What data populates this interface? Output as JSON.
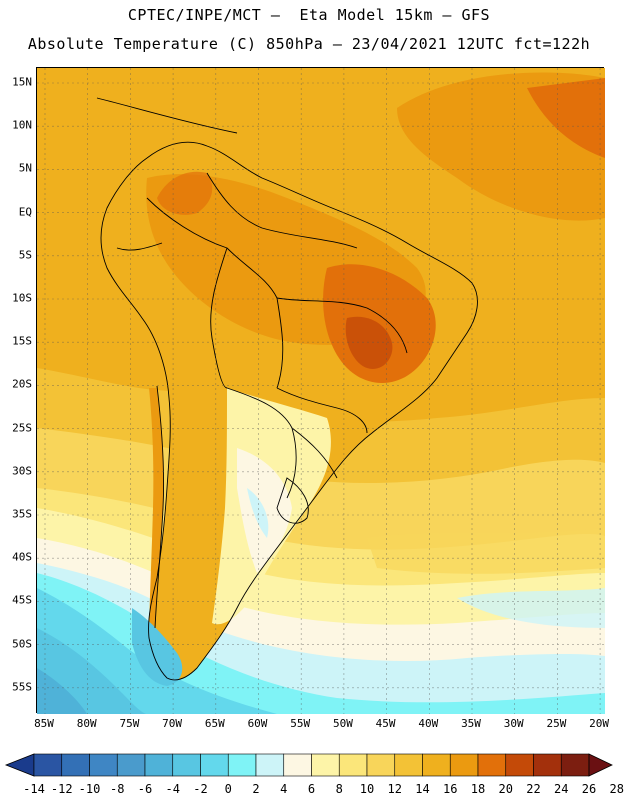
{
  "header": {
    "line1": "CPTEC/INPE/MCT –  Eta Model 15km – GFS",
    "line2": "Absolute Temperature (C) 850hPa – 23/04/2021 12UTC fct=122h"
  },
  "map": {
    "lat_labels": [
      "15N",
      "10N",
      "5N",
      "EQ",
      "5S",
      "10S",
      "15S",
      "20S",
      "25S",
      "30S",
      "35S",
      "40S",
      "45S",
      "50S",
      "55S"
    ],
    "lon_labels": [
      "85W",
      "80W",
      "75W",
      "70W",
      "65W",
      "60W",
      "55W",
      "50W",
      "45W",
      "40W",
      "35W",
      "30W",
      "25W",
      "20W"
    ]
  },
  "colorbar": {
    "labels": [
      "-14",
      "-12",
      "-10",
      "-8",
      "-6",
      "-4",
      "-2",
      "0",
      "2",
      "4",
      "6",
      "8",
      "10",
      "12",
      "14",
      "16",
      "18",
      "20",
      "22",
      "24",
      "26",
      "28"
    ],
    "colors": [
      "#1a3b8c",
      "#2a55a3",
      "#3370b6",
      "#3f86c4",
      "#4a9bcc",
      "#4fb2d8",
      "#58c6e2",
      "#63d8ec",
      "#7ff3f6",
      "#cdf4f8",
      "#fdf7e3",
      "#fdf4a8",
      "#fbe67a",
      "#f8d55a",
      "#f3c236",
      "#efb01e",
      "#eb9a10",
      "#e2700a",
      "#c44a08",
      "#a3300c",
      "#7c1e10",
      "#6a1012"
    ]
  }
}
